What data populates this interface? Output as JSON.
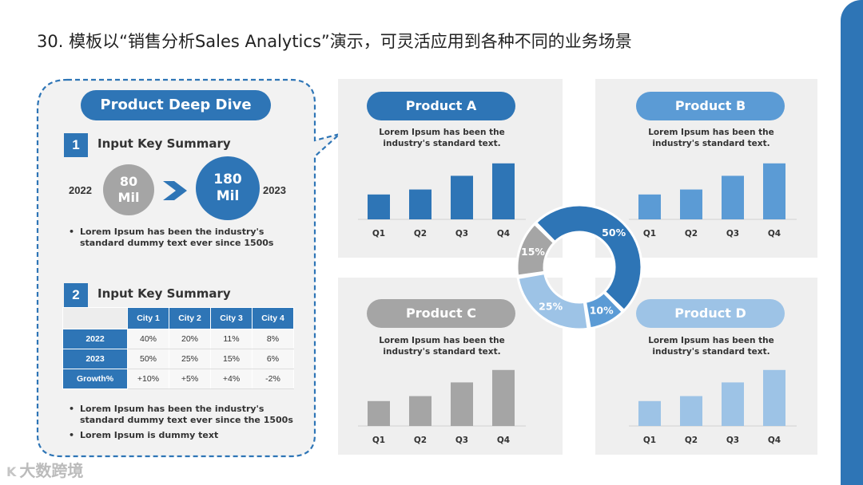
{
  "slide": {
    "title": "30. 模板以“销售分析Sales Analytics”演示，可灵活应用到各种不同的业务场景"
  },
  "deep_dive": {
    "title": "Product Deep Dive",
    "section1": {
      "number": "1",
      "title": "Input Key Summary",
      "year_from": "2022",
      "year_to": "2023",
      "value_from_num": "80",
      "value_from_unit": "Mil",
      "value_to_num": "180",
      "value_to_unit": "Mil",
      "bullets": [
        "Lorem Ipsum has been the industry's standard dummy text ever since 1500s"
      ]
    },
    "section2": {
      "number": "2",
      "title": "Input Key Summary",
      "columns": [
        "City 1",
        "City 2",
        "City 3",
        "City 4"
      ],
      "rows": [
        {
          "label": "2022",
          "values": [
            "40%",
            "20%",
            "11%",
            "8%"
          ]
        },
        {
          "label": "2023",
          "values": [
            "50%",
            "25%",
            "15%",
            "6%"
          ]
        },
        {
          "label": "Growth%",
          "values": [
            "+10%",
            "+5%",
            "+4%",
            "-2%"
          ]
        }
      ],
      "bullets": [
        "Lorem Ipsum has been the industry's standard dummy text ever since the 1500s",
        "Lorem Ipsum is dummy text"
      ]
    }
  },
  "products": [
    {
      "name": "Product A",
      "desc1": "Lorem Ipsum has been the",
      "desc2": "industry's standard text.",
      "color": "#2E75B6",
      "bar_color": "#2E75B6"
    },
    {
      "name": "Product B",
      "desc1": "Lorem Ipsum has been the",
      "desc2": "industry's standard text.",
      "color": "#5B9BD5",
      "bar_color": "#5B9BD5"
    },
    {
      "name": "Product C",
      "desc1": "Lorem Ipsum has been the",
      "desc2": "industry's standard text.",
      "color": "#A5A5A5",
      "bar_color": "#A5A5A5"
    },
    {
      "name": "Product D",
      "desc1": "Lorem Ipsum has been the",
      "desc2": "industry's standard text.",
      "color": "#9DC3E6",
      "bar_color": "#9DC3E6"
    }
  ],
  "chart_data": [
    {
      "type": "bar",
      "title": "Product A",
      "categories": [
        "Q1",
        "Q2",
        "Q3",
        "Q4"
      ],
      "values": [
        40,
        48,
        70,
        90
      ],
      "ylim": [
        0,
        100
      ],
      "color": "#2E75B6"
    },
    {
      "type": "bar",
      "title": "Product B",
      "categories": [
        "Q1",
        "Q2",
        "Q3",
        "Q4"
      ],
      "values": [
        40,
        48,
        70,
        90
      ],
      "ylim": [
        0,
        100
      ],
      "color": "#5B9BD5"
    },
    {
      "type": "bar",
      "title": "Product C",
      "categories": [
        "Q1",
        "Q2",
        "Q3",
        "Q4"
      ],
      "values": [
        40,
        48,
        70,
        90
      ],
      "ylim": [
        0,
        100
      ],
      "color": "#A5A5A5"
    },
    {
      "type": "bar",
      "title": "Product D",
      "categories": [
        "Q1",
        "Q2",
        "Q3",
        "Q4"
      ],
      "values": [
        40,
        48,
        70,
        90
      ],
      "ylim": [
        0,
        100
      ],
      "color": "#9DC3E6"
    },
    {
      "type": "pie",
      "style": "donut",
      "labels": [
        "50%",
        "10%",
        "25%",
        "15%"
      ],
      "values": [
        50,
        10,
        25,
        15
      ],
      "colors": [
        "#2E75B6",
        "#5B9BD5",
        "#9DC3E6",
        "#A5A5A5"
      ]
    }
  ],
  "watermark": {
    "text": "大数跨境",
    "mark": "K"
  }
}
